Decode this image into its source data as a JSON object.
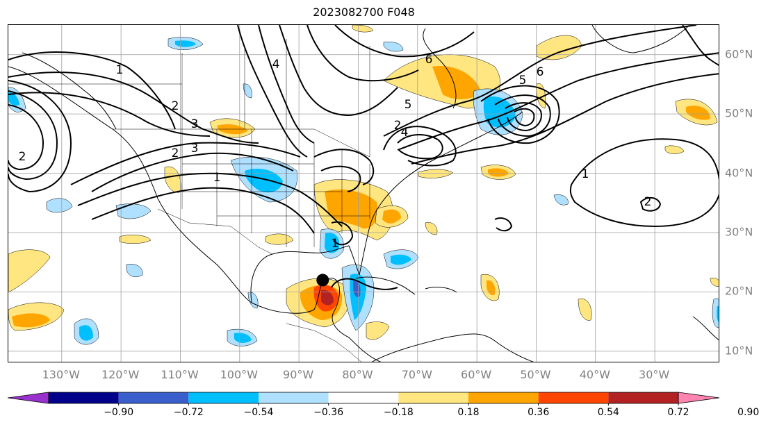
{
  "title": "2023082700 F048",
  "longitude_labels": [
    "130°W",
    "120°W",
    "110°W",
    "100°W",
    "90°W",
    "80°W",
    "70°W",
    "60°W",
    "50°W",
    "40°W",
    "30°W"
  ],
  "latitude_labels": [
    "60°N",
    "50°N",
    "40°N",
    "30°N",
    "20°N",
    "10°N"
  ],
  "colorbar": {
    "tick_labels": [
      "−0.90",
      "−0.72",
      "−0.54",
      "−0.36",
      "−0.18",
      "0.18",
      "0.36",
      "0.54",
      "0.72",
      "0.90"
    ],
    "colors": [
      "#9932cc",
      "#00008b",
      "#3a5fcd",
      "#00bfff",
      "#b0e0ff",
      "#ffffff",
      "#ffe680",
      "#ffa500",
      "#ff4500",
      "#b22222",
      "#ff85b0"
    ],
    "extend": "both"
  },
  "contour_labels": [
    "1",
    "2",
    "3",
    "4",
    "5",
    "6",
    "1",
    "2",
    "3",
    "1",
    "2",
    "4",
    "5",
    "6",
    "2",
    "1",
    "2"
  ],
  "map": {
    "projection": "plate carree",
    "lon_range": [
      -139,
      -19
    ],
    "lat_range": [
      8,
      65
    ],
    "gridlines": true,
    "marker": {
      "lon": -86,
      "lat": 22
    }
  },
  "colors": {
    "contour": "#000000",
    "grid": "#9e9e9e",
    "label": "#808080"
  }
}
